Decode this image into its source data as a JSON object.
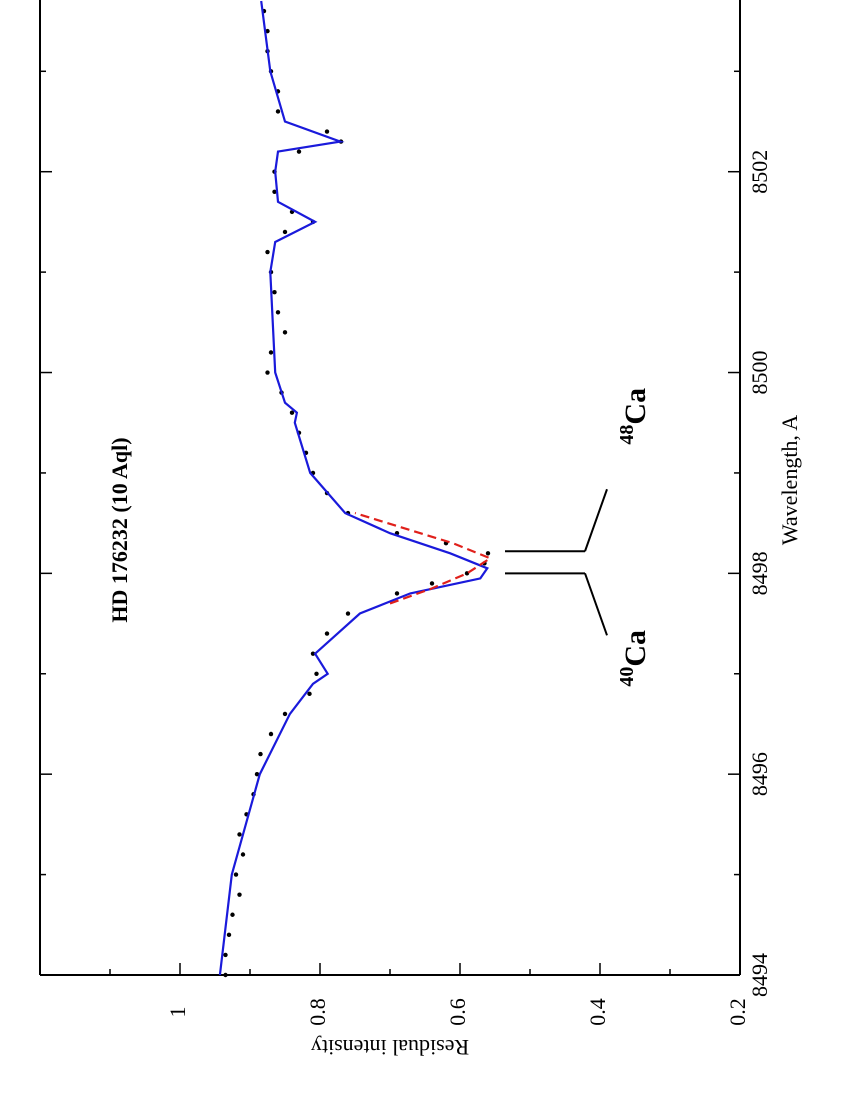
{
  "chart_data": {
    "type": "line",
    "title": "HD 176232 (10 Aql)",
    "x_label": "Wavelength, A",
    "y_label": "Residual intensity",
    "xlim": [
      8494,
      8503.71
    ],
    "ylim": [
      0.2,
      1.2
    ],
    "xticks": [
      8494,
      8496,
      8498,
      8500,
      8502
    ],
    "xminorticks": [
      8495,
      8497,
      8499,
      8501,
      8503
    ],
    "yticks": [
      0.2,
      0.4,
      0.6,
      0.8,
      1
    ],
    "yminorticks": [
      0.3,
      0.5,
      0.7,
      0.9,
      1.1
    ],
    "series": [
      {
        "mode": "markers",
        "color": "#000000",
        "x": [
          8494.0,
          8494.2,
          8494.4,
          8494.6,
          8494.8,
          8495.0,
          8495.2,
          8495.4,
          8495.6,
          8495.8,
          8496.0,
          8496.2,
          8496.4,
          8496.6,
          8496.8,
          8497.0,
          8497.2,
          8497.4,
          8497.6,
          8497.8,
          8497.9,
          8498.0,
          8498.1,
          8498.2,
          8498.3,
          8498.4,
          8498.6,
          8498.8,
          8499.0,
          8499.2,
          8499.4,
          8499.6,
          8499.8,
          8500.0,
          8500.2,
          8500.4,
          8500.6,
          8500.8,
          8501.0,
          8501.2,
          8501.4,
          8501.5,
          8501.6,
          8501.8,
          8502.0,
          8502.2,
          8502.3,
          8502.4,
          8502.6,
          8502.8,
          8503.0,
          8503.2,
          8503.4,
          8503.6
        ],
        "values": [
          0.935,
          0.935,
          0.93,
          0.925,
          0.915,
          0.92,
          0.91,
          0.915,
          0.905,
          0.895,
          0.89,
          0.885,
          0.87,
          0.85,
          0.815,
          0.805,
          0.81,
          0.79,
          0.76,
          0.69,
          0.64,
          0.59,
          0.565,
          0.56,
          0.62,
          0.69,
          0.76,
          0.79,
          0.81,
          0.82,
          0.83,
          0.84,
          0.855,
          0.875,
          0.87,
          0.85,
          0.86,
          0.865,
          0.87,
          0.875,
          0.85,
          0.81,
          0.84,
          0.865,
          0.865,
          0.83,
          0.77,
          0.79,
          0.86,
          0.86,
          0.87,
          0.875,
          0.875,
          0.88
        ]
      },
      {
        "mode": "line",
        "color": "#1a1adb",
        "dashed": false,
        "x": [
          8494.0,
          8495.0,
          8495.3,
          8496.0,
          8496.6,
          8496.9,
          8497.0,
          8497.2,
          8497.6,
          8497.8,
          8497.95,
          8498.05,
          8498.2,
          8498.4,
          8498.6,
          8499.0,
          8499.5,
          8499.6,
          8499.7,
          8500.0,
          8501.0,
          8501.3,
          8501.5,
          8501.7,
          8502.0,
          8502.2,
          8502.3,
          8502.5,
          8503.0,
          8503.7
        ],
        "values": [
          0.943,
          0.926,
          0.914,
          0.886,
          0.843,
          0.81,
          0.789,
          0.807,
          0.743,
          0.671,
          0.571,
          0.561,
          0.614,
          0.7,
          0.764,
          0.814,
          0.836,
          0.833,
          0.85,
          0.864,
          0.871,
          0.864,
          0.807,
          0.86,
          0.864,
          0.86,
          0.771,
          0.85,
          0.871,
          0.884
        ]
      },
      {
        "mode": "line",
        "color": "#e0201b",
        "dashed": true,
        "x": [
          8497.7,
          8497.85,
          8498.0,
          8498.15,
          8498.3,
          8498.45,
          8498.6
        ],
        "values": [
          0.7,
          0.64,
          0.59,
          0.557,
          0.61,
          0.68,
          0.75
        ]
      }
    ],
    "isotope_lines": [
      {
        "mass": "40",
        "element": "Ca",
        "wavelength": 8498.0
      },
      {
        "mass": "48",
        "element": "Ca",
        "wavelength": 8498.22
      }
    ]
  }
}
